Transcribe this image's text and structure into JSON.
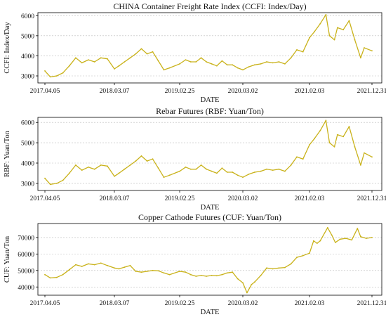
{
  "chart_data": [
    {
      "type": "line",
      "title": "CHINA Container Freight Rate Index (CCFI: Index/Day)",
      "xlabel": "DATE",
      "ylabel": "CCFI: Index/Day",
      "x_ticks": [
        "2017.04.05",
        "2018.03.07",
        "2019.02.25",
        "2020.03.02",
        "2021.02.03",
        "2021.12.31"
      ],
      "y_ticks": [
        3000,
        4000,
        5000,
        6000
      ],
      "ylim": [
        2650,
        6150
      ],
      "grid": "horizontal dashed",
      "series": [
        {
          "color": "#c9b21a",
          "points": [
            [
              "2017.04.05",
              3250
            ],
            [
              "2017.05.01",
              2950
            ],
            [
              "2017.06.01",
              3000
            ],
            [
              "2017.07.01",
              3150
            ],
            [
              "2017.08.01",
              3500
            ],
            [
              "2017.09.01",
              3900
            ],
            [
              "2017.10.01",
              3650
            ],
            [
              "2017.11.01",
              3800
            ],
            [
              "2017.12.01",
              3700
            ],
            [
              "2018.01.01",
              3900
            ],
            [
              "2018.02.01",
              3850
            ],
            [
              "2018.03.07",
              3350
            ],
            [
              "2018.04.01",
              3500
            ],
            [
              "2018.05.01",
              3700
            ],
            [
              "2018.06.01",
              3900
            ],
            [
              "2018.07.01",
              4100
            ],
            [
              "2018.08.01",
              4350
            ],
            [
              "2018.09.01",
              4100
            ],
            [
              "2018.10.01",
              4200
            ],
            [
              "2018.11.01",
              3750
            ],
            [
              "2018.12.01",
              3300
            ],
            [
              "2019.01.01",
              3400
            ],
            [
              "2019.02.25",
              3600
            ],
            [
              "2019.04.01",
              3800
            ],
            [
              "2019.05.01",
              3700
            ],
            [
              "2019.06.01",
              3700
            ],
            [
              "2019.07.01",
              3900
            ],
            [
              "2019.08.01",
              3700
            ],
            [
              "2019.09.01",
              3600
            ],
            [
              "2019.10.01",
              3500
            ],
            [
              "2019.11.01",
              3750
            ],
            [
              "2019.12.01",
              3550
            ],
            [
              "2020.01.01",
              3550
            ],
            [
              "2020.02.01",
              3400
            ],
            [
              "2020.03.02",
              3300
            ],
            [
              "2020.04.01",
              3450
            ],
            [
              "2020.05.01",
              3550
            ],
            [
              "2020.06.01",
              3600
            ],
            [
              "2020.07.01",
              3700
            ],
            [
              "2020.08.01",
              3650
            ],
            [
              "2020.09.01",
              3700
            ],
            [
              "2020.10.01",
              3600
            ],
            [
              "2020.11.01",
              3900
            ],
            [
              "2020.12.01",
              4300
            ],
            [
              "2021.01.01",
              4200
            ],
            [
              "2021.02.03",
              4900
            ],
            [
              "2021.03.01",
              5200
            ],
            [
              "2021.04.01",
              5600
            ],
            [
              "2021.05.01",
              6050
            ],
            [
              "2021.05.20",
              5000
            ],
            [
              "2021.06.15",
              4800
            ],
            [
              "2021.07.01",
              5400
            ],
            [
              "2021.08.01",
              5300
            ],
            [
              "2021.09.01",
              5750
            ],
            [
              "2021.10.01",
              4800
            ],
            [
              "2021.11.01",
              3900
            ],
            [
              "2021.11.20",
              4400
            ],
            [
              "2021.12.31",
              4250
            ]
          ]
        }
      ]
    },
    {
      "type": "line",
      "title": "Rebar Futures (RBF: Yuan/Ton)",
      "xlabel": "DATE",
      "ylabel": "RBF: Yuan/Ton",
      "x_ticks": [
        "2017.04.05",
        "2018.03.07",
        "2019.02.25",
        "2020.03.02",
        "2021.02.03",
        "2021.12.31"
      ],
      "y_ticks": [
        3000,
        4000,
        5000,
        6000
      ],
      "ylim": [
        2650,
        6250
      ],
      "grid": "horizontal dashed",
      "series": [
        {
          "color": "#c9b21a",
          "points": [
            [
              "2017.04.05",
              3250
            ],
            [
              "2017.05.01",
              2950
            ],
            [
              "2017.06.01",
              3000
            ],
            [
              "2017.07.01",
              3150
            ],
            [
              "2017.08.01",
              3500
            ],
            [
              "2017.09.01",
              3900
            ],
            [
              "2017.10.01",
              3650
            ],
            [
              "2017.11.01",
              3800
            ],
            [
              "2017.12.01",
              3700
            ],
            [
              "2018.01.01",
              3900
            ],
            [
              "2018.02.01",
              3850
            ],
            [
              "2018.03.07",
              3350
            ],
            [
              "2018.04.01",
              3500
            ],
            [
              "2018.05.01",
              3700
            ],
            [
              "2018.06.01",
              3900
            ],
            [
              "2018.07.01",
              4100
            ],
            [
              "2018.08.01",
              4350
            ],
            [
              "2018.09.01",
              4100
            ],
            [
              "2018.10.01",
              4200
            ],
            [
              "2018.11.01",
              3750
            ],
            [
              "2018.12.01",
              3300
            ],
            [
              "2019.01.01",
              3400
            ],
            [
              "2019.02.25",
              3600
            ],
            [
              "2019.04.01",
              3800
            ],
            [
              "2019.05.01",
              3700
            ],
            [
              "2019.06.01",
              3700
            ],
            [
              "2019.07.01",
              3900
            ],
            [
              "2019.08.01",
              3700
            ],
            [
              "2019.09.01",
              3600
            ],
            [
              "2019.10.01",
              3500
            ],
            [
              "2019.11.01",
              3750
            ],
            [
              "2019.12.01",
              3550
            ],
            [
              "2020.01.01",
              3550
            ],
            [
              "2020.02.01",
              3400
            ],
            [
              "2020.03.02",
              3300
            ],
            [
              "2020.04.01",
              3450
            ],
            [
              "2020.05.01",
              3550
            ],
            [
              "2020.06.01",
              3600
            ],
            [
              "2020.07.01",
              3700
            ],
            [
              "2020.08.01",
              3650
            ],
            [
              "2020.09.01",
              3700
            ],
            [
              "2020.10.01",
              3600
            ],
            [
              "2020.11.01",
              3900
            ],
            [
              "2020.12.01",
              4300
            ],
            [
              "2021.01.01",
              4200
            ],
            [
              "2021.02.03",
              4900
            ],
            [
              "2021.03.01",
              5200
            ],
            [
              "2021.04.01",
              5600
            ],
            [
              "2021.05.01",
              6100
            ],
            [
              "2021.05.20",
              5000
            ],
            [
              "2021.06.15",
              4800
            ],
            [
              "2021.07.01",
              5400
            ],
            [
              "2021.08.01",
              5300
            ],
            [
              "2021.09.01",
              5800
            ],
            [
              "2021.10.01",
              4800
            ],
            [
              "2021.11.01",
              3900
            ],
            [
              "2021.11.20",
              4500
            ],
            [
              "2021.12.31",
              4300
            ]
          ]
        }
      ]
    },
    {
      "type": "line",
      "title": "Copper Cathode Futures (CUF: Yuan/Ton)",
      "xlabel": "DATE",
      "ylabel": "CUF: Yuan/Ton",
      "x_ticks": [
        "2017.04.05",
        "2018.03.07",
        "2019.02.25",
        "2020.03.02",
        "2021.02.03",
        "2021.12.31"
      ],
      "y_ticks": [
        40000,
        50000,
        60000,
        70000
      ],
      "ylim": [
        35000,
        78500
      ],
      "grid": "horizontal dashed",
      "series": [
        {
          "color": "#c9b21a",
          "points": [
            [
              "2017.04.05",
              47500
            ],
            [
              "2017.05.01",
              45500
            ],
            [
              "2017.06.01",
              45800
            ],
            [
              "2017.07.01",
              47500
            ],
            [
              "2017.08.01",
              50500
            ],
            [
              "2017.09.01",
              53500
            ],
            [
              "2017.10.01",
              52500
            ],
            [
              "2017.11.01",
              54000
            ],
            [
              "2017.12.01",
              53500
            ],
            [
              "2018.01.01",
              54500
            ],
            [
              "2018.02.01",
              53000
            ],
            [
              "2018.03.07",
              51500
            ],
            [
              "2018.04.01",
              51000
            ],
            [
              "2018.05.01",
              52000
            ],
            [
              "2018.06.01",
              53000
            ],
            [
              "2018.07.01",
              49500
            ],
            [
              "2018.08.01",
              49000
            ],
            [
              "2018.09.01",
              49500
            ],
            [
              "2018.10.01",
              50000
            ],
            [
              "2018.11.01",
              49800
            ],
            [
              "2018.12.01",
              48500
            ],
            [
              "2019.01.01",
              47500
            ],
            [
              "2019.02.25",
              49500
            ],
            [
              "2019.04.01",
              49000
            ],
            [
              "2019.05.01",
              47500
            ],
            [
              "2019.06.01",
              46500
            ],
            [
              "2019.07.01",
              47000
            ],
            [
              "2019.08.01",
              46500
            ],
            [
              "2019.09.01",
              47000
            ],
            [
              "2019.10.01",
              46800
            ],
            [
              "2019.11.01",
              47500
            ],
            [
              "2019.12.01",
              48500
            ],
            [
              "2020.01.01",
              49000
            ],
            [
              "2020.02.01",
              45000
            ],
            [
              "2020.03.02",
              42500
            ],
            [
              "2020.03.23",
              36500
            ],
            [
              "2020.04.15",
              41500
            ],
            [
              "2020.05.01",
              43000
            ],
            [
              "2020.06.01",
              47000
            ],
            [
              "2020.07.01",
              51500
            ],
            [
              "2020.08.01",
              51000
            ],
            [
              "2020.09.01",
              51500
            ],
            [
              "2020.10.01",
              51800
            ],
            [
              "2020.11.01",
              54000
            ],
            [
              "2020.12.01",
              58000
            ],
            [
              "2021.01.01",
              59000
            ],
            [
              "2021.02.03",
              60500
            ],
            [
              "2021.02.25",
              68000
            ],
            [
              "2021.03.15",
              66500
            ],
            [
              "2021.04.01",
              68000
            ],
            [
              "2021.05.10",
              76000
            ],
            [
              "2021.06.01",
              71500
            ],
            [
              "2021.06.20",
              67000
            ],
            [
              "2021.07.15",
              69000
            ],
            [
              "2021.08.15",
              69500
            ],
            [
              "2021.09.15",
              68500
            ],
            [
              "2021.10.15",
              75500
            ],
            [
              "2021.11.01",
              70500
            ],
            [
              "2021.12.01",
              69500
            ],
            [
              "2021.12.31",
              70000
            ]
          ]
        }
      ]
    }
  ]
}
